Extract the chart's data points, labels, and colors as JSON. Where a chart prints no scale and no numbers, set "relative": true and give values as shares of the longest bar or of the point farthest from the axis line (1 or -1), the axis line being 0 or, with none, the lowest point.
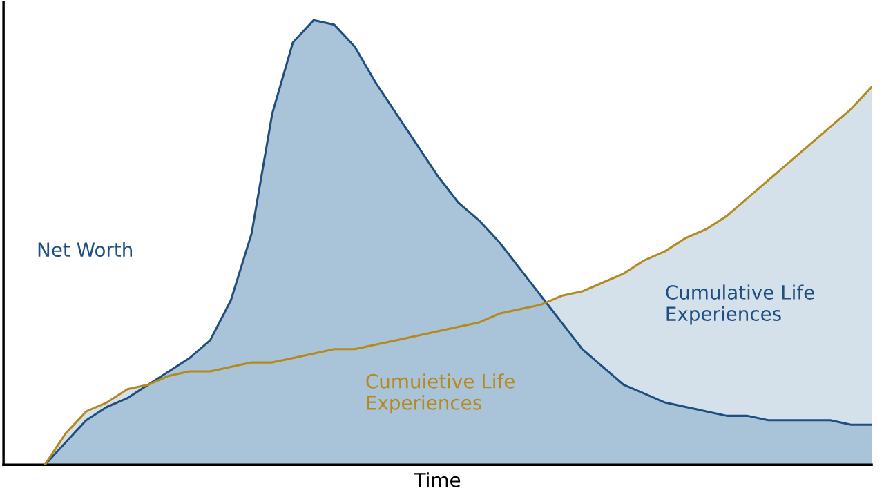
{
  "chart_data": {
    "type": "area",
    "relative": true,
    "xlabel": "Time",
    "tick_labels": false,
    "grid": false,
    "legend": false,
    "categories": [
      null,
      null,
      null,
      null,
      null,
      null,
      null,
      null,
      null,
      null,
      null,
      null,
      null,
      null,
      null,
      null,
      null,
      null,
      null,
      null,
      null,
      null,
      null,
      null,
      null,
      null,
      null,
      null,
      null,
      null,
      null,
      null,
      null,
      null,
      null,
      null,
      null,
      null,
      null,
      null,
      null
    ],
    "series": [
      {
        "name": "Cumuietive Life\nExperiences",
        "color": "#b5891e",
        "values": [
          0,
          0.07,
          0.12,
          0.14,
          0.17,
          0.18,
          0.2,
          0.21,
          0.21,
          0.22,
          0.23,
          0.23,
          0.24,
          0.25,
          0.26,
          0.26,
          0.27,
          0.28,
          0.29,
          0.3,
          0.31,
          0.32,
          0.34,
          0.35,
          0.36,
          0.38,
          0.39,
          0.41,
          0.43,
          0.46,
          0.48,
          0.51,
          0.53,
          0.56,
          0.6,
          0.64,
          0.68,
          0.72,
          0.76,
          0.8,
          0.85
        ]
      },
      {
        "name": "Net Worth",
        "color": "#1f4e80",
        "values": [
          0,
          0.05,
          0.1,
          0.13,
          0.15,
          0.18,
          0.21,
          0.24,
          0.28,
          0.37,
          0.52,
          0.79,
          0.95,
          1.0,
          0.99,
          0.94,
          0.86,
          0.79,
          0.72,
          0.65,
          0.59,
          0.55,
          0.5,
          0.44,
          0.38,
          0.32,
          0.26,
          0.22,
          0.18,
          0.16,
          0.14,
          0.13,
          0.12,
          0.11,
          0.11,
          0.1,
          0.1,
          0.1,
          0.1,
          0.09,
          0.09
        ]
      }
    ],
    "annotations": [
      "Cumulative Life\nExperiences"
    ]
  }
}
